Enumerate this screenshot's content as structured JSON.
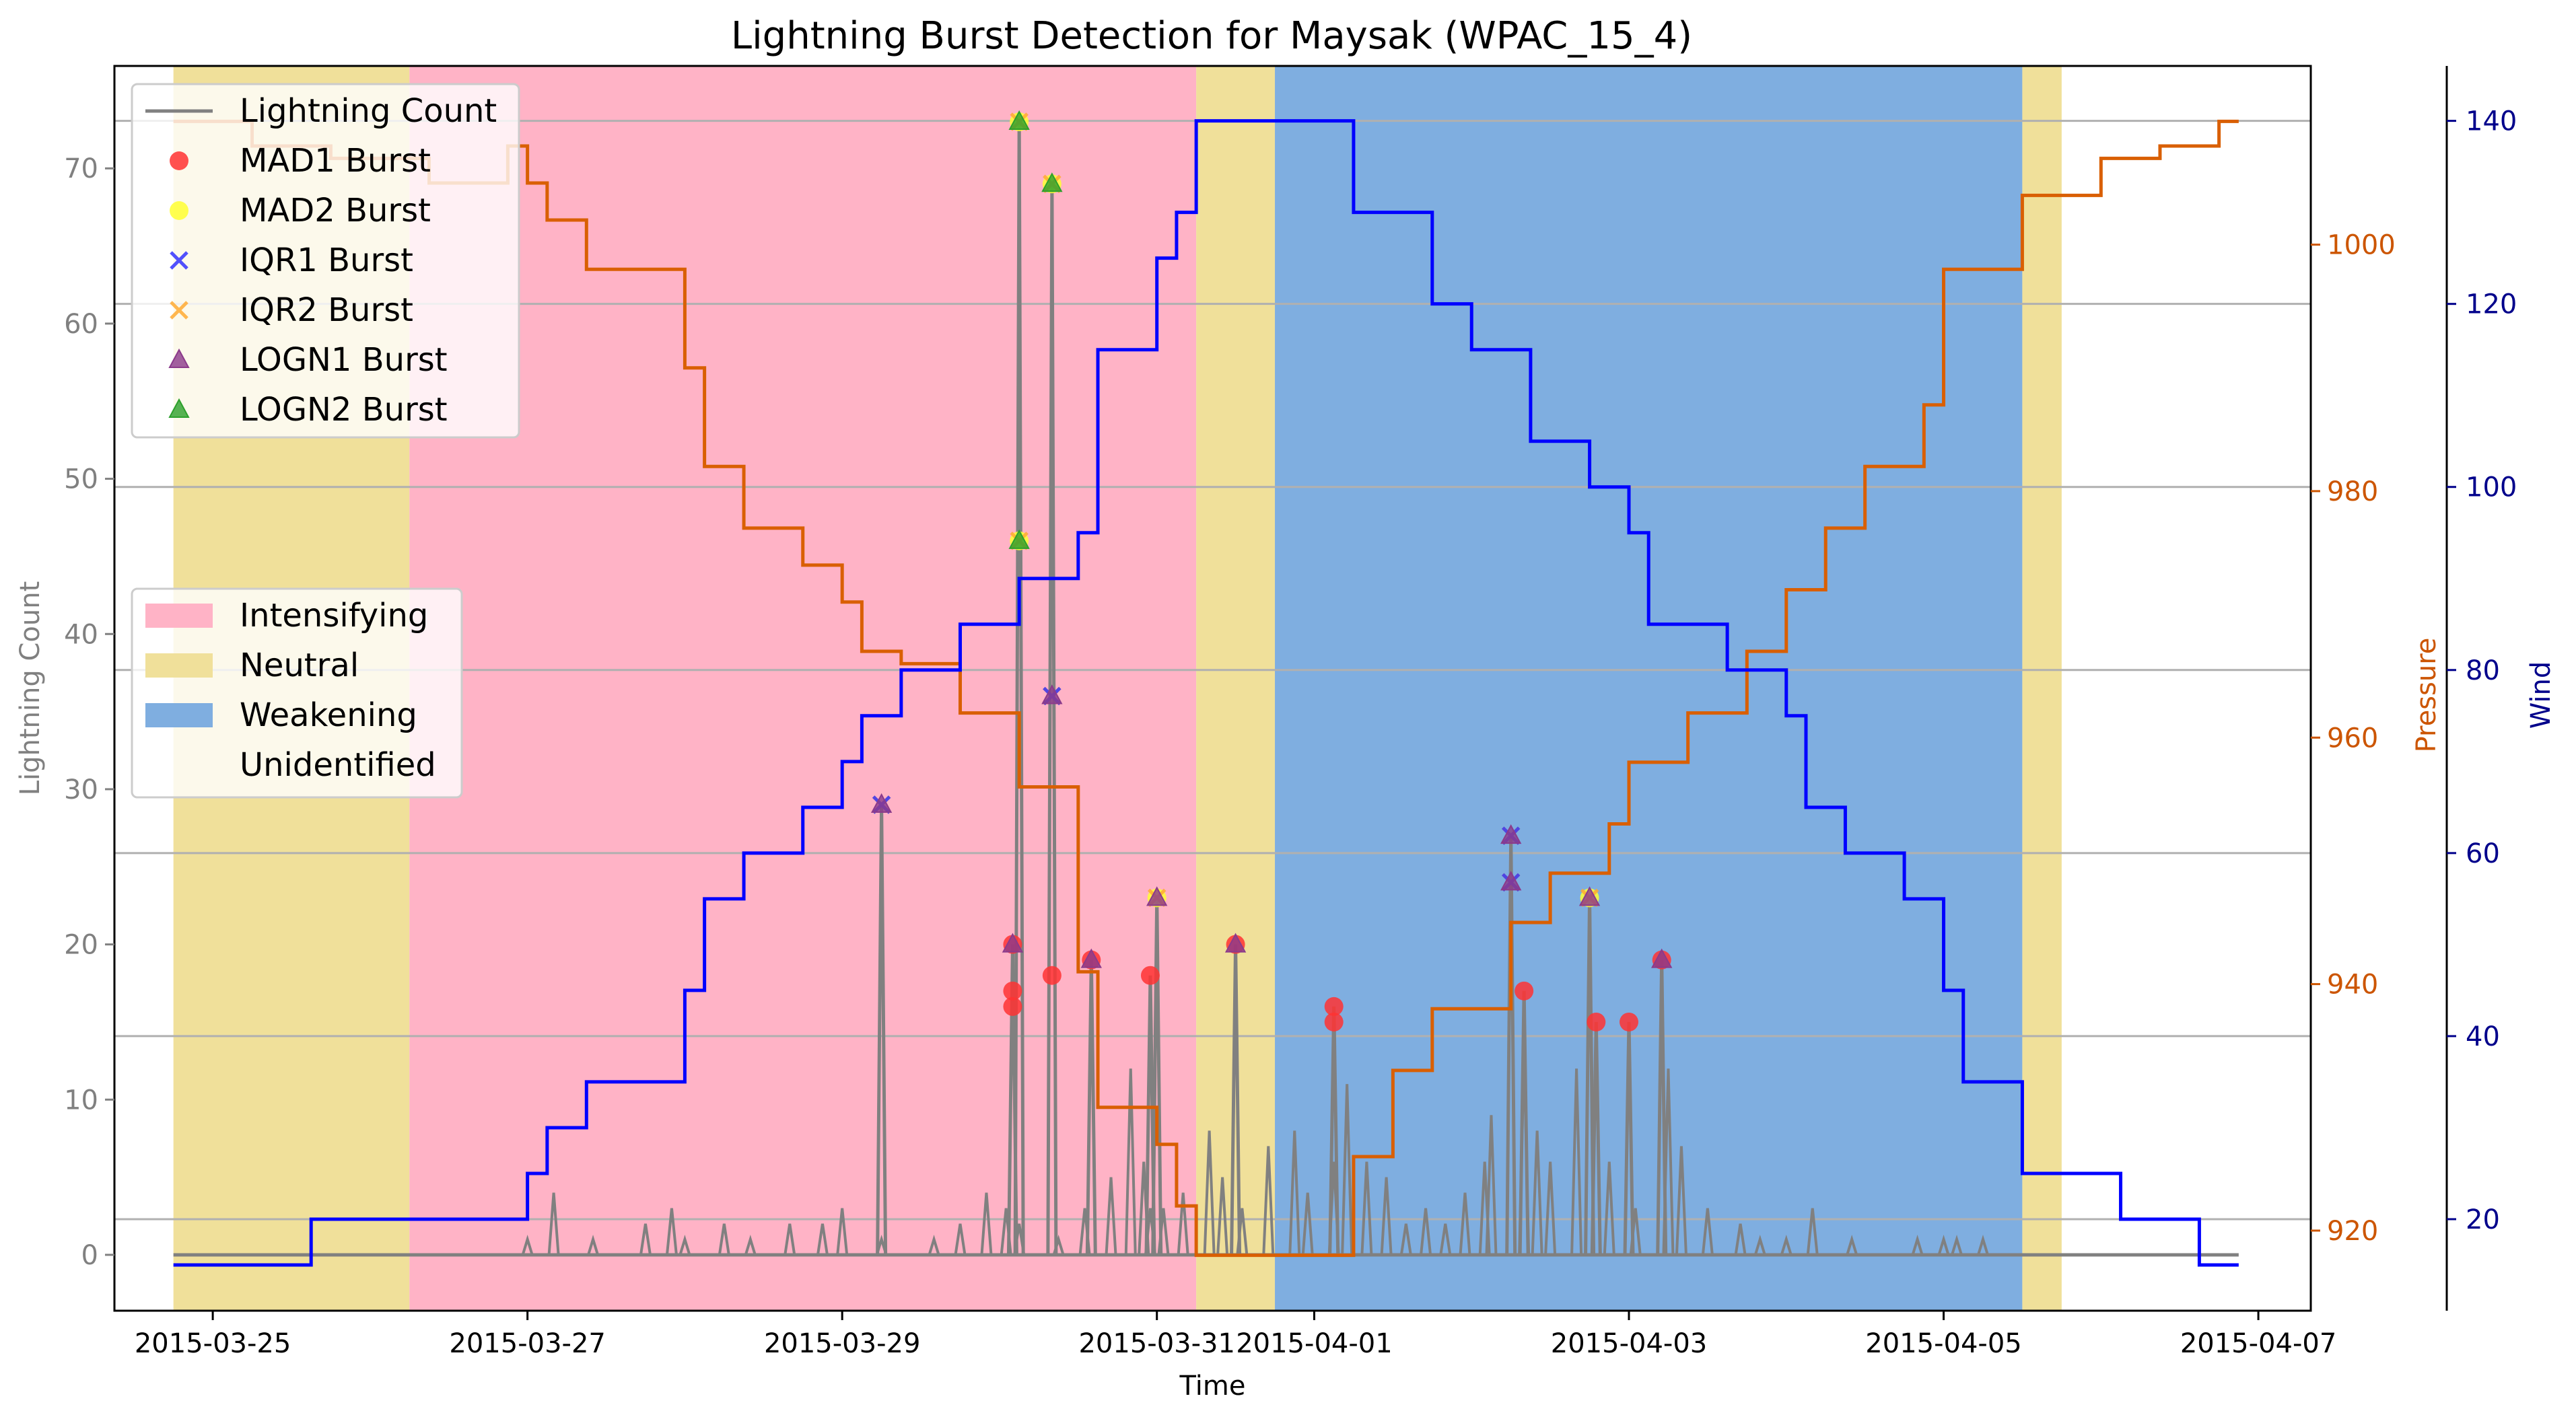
{
  "chart_data": {
    "type": "line",
    "title": "Lightning Burst Detection for Maysak (WPAC_15_4)",
    "xlabel": "Time",
    "ylabel_left": "Lightning Count",
    "ylabel_pressure": "Pressure",
    "ylabel_wind": "Wind",
    "x_range": [
      "2015-03-24T09:00",
      "2015-04-07T08:00"
    ],
    "x_ticks": [
      "2015-03-25",
      "2015-03-27",
      "2015-03-29",
      "2015-03-31",
      "2015-04-01",
      "2015-04-03",
      "2015-04-05",
      "2015-04-07"
    ],
    "x_tick_labels": [
      "2015-03-25",
      "2015-03-27",
      "2015-03-29",
      "2015-03-31",
      "2015-04-01",
      "2015-04-03",
      "2015-04-05",
      "2015-04-07"
    ],
    "y_left": {
      "range": [
        -3.6,
        76.6
      ],
      "ticks": [
        0,
        10,
        20,
        30,
        40,
        50,
        60,
        70
      ]
    },
    "y_pressure": {
      "range": [
        913.5,
        1014.5
      ],
      "ticks": [
        920,
        940,
        960,
        980,
        1000
      ]
    },
    "y_wind": {
      "range": [
        10.0,
        146.0
      ],
      "ticks": [
        20,
        40,
        60,
        80,
        100,
        120,
        140
      ]
    },
    "grid": "horizontal lines at wind ticks",
    "colors": {
      "intensifying": "#ffb3c6",
      "neutral": "#f0e09a",
      "weakening": "#7faee0",
      "lightning": "#808080",
      "pressure": "#d95f02",
      "wind": "#0000ff",
      "mad1": "#ff3333",
      "mad2": "#ffff33",
      "iqr1": "#3333ff",
      "iqr2": "#ffaa33",
      "logn1": "#8b3a8b",
      "logn2": "#2ca02c",
      "pressure_axis": "#cc5500",
      "wind_axis": "#00008b"
    },
    "phases": [
      {
        "label": "Neutral",
        "start": "2015-03-24T18:00",
        "end": "2015-03-26T06:00"
      },
      {
        "label": "Intensifying",
        "start": "2015-03-26T06:00",
        "end": "2015-03-31T06:00"
      },
      {
        "label": "Neutral",
        "start": "2015-03-31T06:00",
        "end": "2015-03-31T18:00"
      },
      {
        "label": "Weakening",
        "start": "2015-03-31T18:00",
        "end": "2015-04-05T12:00"
      },
      {
        "label": "Neutral",
        "start": "2015-04-05T12:00",
        "end": "2015-04-05T18:00"
      }
    ],
    "series": [
      {
        "name": "Pressure",
        "axis": "pressure",
        "step": true,
        "points": [
          [
            "2015-03-24T18:00",
            1010
          ],
          [
            "2015-03-25T06:00",
            1008
          ],
          [
            "2015-03-25T18:00",
            1007
          ],
          [
            "2015-03-26T09:00",
            1005
          ],
          [
            "2015-03-26T21:00",
            1008
          ],
          [
            "2015-03-27T00:00",
            1005
          ],
          [
            "2015-03-27T03:00",
            1002
          ],
          [
            "2015-03-27T09:00",
            998
          ],
          [
            "2015-03-28T00:00",
            990
          ],
          [
            "2015-03-28T03:00",
            982
          ],
          [
            "2015-03-28T09:00",
            977
          ],
          [
            "2015-03-28T18:00",
            974
          ],
          [
            "2015-03-29T00:00",
            971
          ],
          [
            "2015-03-29T03:00",
            967
          ],
          [
            "2015-03-29T09:00",
            966
          ],
          [
            "2015-03-29T18:00",
            962
          ],
          [
            "2015-03-30T03:00",
            956
          ],
          [
            "2015-03-30T12:00",
            941
          ],
          [
            "2015-03-30T15:00",
            930
          ],
          [
            "2015-03-31T00:00",
            927
          ],
          [
            "2015-03-31T03:00",
            922
          ],
          [
            "2015-03-31T06:00",
            918
          ],
          [
            "2015-04-01T06:00",
            926
          ],
          [
            "2015-04-01T12:00",
            933
          ],
          [
            "2015-04-01T18:00",
            938
          ],
          [
            "2015-04-02T06:00",
            945
          ],
          [
            "2015-04-02T12:00",
            949
          ],
          [
            "2015-04-02T21:00",
            953
          ],
          [
            "2015-04-03T00:00",
            958
          ],
          [
            "2015-04-03T09:00",
            962
          ],
          [
            "2015-04-03T18:00",
            967
          ],
          [
            "2015-04-04T00:00",
            972
          ],
          [
            "2015-04-04T06:00",
            977
          ],
          [
            "2015-04-04T12:00",
            982
          ],
          [
            "2015-04-04T21:00",
            987
          ],
          [
            "2015-04-05T00:00",
            998
          ],
          [
            "2015-04-05T12:00",
            1004
          ],
          [
            "2015-04-06T00:00",
            1007
          ],
          [
            "2015-04-06T09:00",
            1008
          ],
          [
            "2015-04-06T18:00",
            1010
          ],
          [
            "2015-04-06T21:00",
            1010
          ]
        ]
      },
      {
        "name": "Wind",
        "axis": "wind",
        "step": true,
        "points": [
          [
            "2015-03-24T18:00",
            15
          ],
          [
            "2015-03-25T15:00",
            20
          ],
          [
            "2015-03-27T00:00",
            25
          ],
          [
            "2015-03-27T03:00",
            30
          ],
          [
            "2015-03-27T09:00",
            35
          ],
          [
            "2015-03-28T00:00",
            45
          ],
          [
            "2015-03-28T03:00",
            55
          ],
          [
            "2015-03-28T09:00",
            60
          ],
          [
            "2015-03-28T18:00",
            65
          ],
          [
            "2015-03-29T00:00",
            70
          ],
          [
            "2015-03-29T03:00",
            75
          ],
          [
            "2015-03-29T09:00",
            80
          ],
          [
            "2015-03-29T18:00",
            85
          ],
          [
            "2015-03-30T03:00",
            90
          ],
          [
            "2015-03-30T12:00",
            95
          ],
          [
            "2015-03-30T15:00",
            115
          ],
          [
            "2015-03-31T00:00",
            125
          ],
          [
            "2015-03-31T03:00",
            130
          ],
          [
            "2015-03-31T06:00",
            140
          ],
          [
            "2015-04-01T06:00",
            130
          ],
          [
            "2015-04-01T18:00",
            120
          ],
          [
            "2015-04-02T00:00",
            115
          ],
          [
            "2015-04-02T09:00",
            105
          ],
          [
            "2015-04-02T18:00",
            100
          ],
          [
            "2015-04-03T00:00",
            95
          ],
          [
            "2015-04-03T03:00",
            85
          ],
          [
            "2015-04-03T15:00",
            80
          ],
          [
            "2015-04-04T00:00",
            75
          ],
          [
            "2015-04-04T03:00",
            65
          ],
          [
            "2015-04-04T09:00",
            60
          ],
          [
            "2015-04-04T18:00",
            55
          ],
          [
            "2015-04-05T00:00",
            45
          ],
          [
            "2015-04-05T03:00",
            35
          ],
          [
            "2015-04-05T12:00",
            25
          ],
          [
            "2015-04-06T03:00",
            20
          ],
          [
            "2015-04-06T15:00",
            15
          ],
          [
            "2015-04-06T21:00",
            15
          ]
        ]
      },
      {
        "name": "Lightning Count",
        "axis": "left",
        "peaks": [
          [
            "2015-03-27T00:00",
            1
          ],
          [
            "2015-03-27T04:00",
            4
          ],
          [
            "2015-03-27T10:00",
            1
          ],
          [
            "2015-03-27T18:00",
            2
          ],
          [
            "2015-03-27T22:00",
            3
          ],
          [
            "2015-03-28T00:00",
            1
          ],
          [
            "2015-03-28T06:00",
            2
          ],
          [
            "2015-03-28T10:00",
            1
          ],
          [
            "2015-03-28T16:00",
            2
          ],
          [
            "2015-03-28T21:00",
            2
          ],
          [
            "2015-03-29T00:00",
            3
          ],
          [
            "2015-03-29T06:00",
            1
          ],
          [
            "2015-03-29T14:00",
            1
          ],
          [
            "2015-03-29T18:00",
            2
          ],
          [
            "2015-03-29T22:00",
            4
          ],
          [
            "2015-03-30T01:00",
            3
          ],
          [
            "2015-03-30T03:00",
            2
          ],
          [
            "2015-03-30T09:00",
            1
          ],
          [
            "2015-03-30T13:00",
            3
          ],
          [
            "2015-03-30T17:00",
            5
          ],
          [
            "2015-03-30T20:00",
            12
          ],
          [
            "2015-03-30T22:00",
            6
          ],
          [
            "2015-03-30T23:00",
            3
          ],
          [
            "2015-03-31T01:00",
            3
          ],
          [
            "2015-03-31T04:00",
            4
          ],
          [
            "2015-03-31T08:00",
            8
          ],
          [
            "2015-03-31T10:00",
            5
          ],
          [
            "2015-03-31T13:00",
            3
          ],
          [
            "2015-03-31T17:00",
            7
          ],
          [
            "2015-03-31T21:00",
            8
          ],
          [
            "2015-03-31T23:00",
            4
          ],
          [
            "2015-04-01T03:00",
            6
          ],
          [
            "2015-04-01T05:00",
            11
          ],
          [
            "2015-04-01T08:00",
            6
          ],
          [
            "2015-04-01T11:00",
            5
          ],
          [
            "2015-04-01T14:00",
            2
          ],
          [
            "2015-04-01T17:00",
            3
          ],
          [
            "2015-04-01T20:00",
            2
          ],
          [
            "2015-04-01T23:00",
            4
          ],
          [
            "2015-04-02T02:00",
            6
          ],
          [
            "2015-04-02T03:00",
            9
          ],
          [
            "2015-04-02T08:00",
            13
          ],
          [
            "2015-04-02T10:00",
            8
          ],
          [
            "2015-04-02T12:00",
            6
          ],
          [
            "2015-04-02T16:00",
            12
          ],
          [
            "2015-04-02T21:00",
            6
          ],
          [
            "2015-04-03T01:00",
            3
          ],
          [
            "2015-04-03T06:00",
            12
          ],
          [
            "2015-04-03T08:00",
            7
          ],
          [
            "2015-04-03T12:00",
            3
          ],
          [
            "2015-04-03T17:00",
            2
          ],
          [
            "2015-04-03T20:00",
            1
          ],
          [
            "2015-04-04T00:00",
            1
          ],
          [
            "2015-04-04T04:00",
            3
          ],
          [
            "2015-04-04T10:00",
            1
          ],
          [
            "2015-04-04T20:00",
            1
          ],
          [
            "2015-04-05T00:00",
            1
          ],
          [
            "2015-04-05T02:00",
            1
          ],
          [
            "2015-04-05T06:00",
            1
          ]
        ]
      }
    ],
    "bursts": [
      {
        "time": "2015-03-29T06:00",
        "count": 29,
        "markers": [
          "LOGN1",
          "IQR1",
          "IQR2"
        ]
      },
      {
        "time": "2015-03-30T02:00",
        "count": 17,
        "markers": [
          "MAD1"
        ]
      },
      {
        "time": "2015-03-30T02:00",
        "count": 16,
        "markers": [
          "MAD1"
        ]
      },
      {
        "time": "2015-03-30T02:00",
        "count": 20,
        "markers": [
          "MAD1",
          "LOGN1"
        ]
      },
      {
        "time": "2015-03-30T03:00",
        "count": 73,
        "markers": [
          "MAD2",
          "IQR2",
          "LOGN2"
        ]
      },
      {
        "time": "2015-03-30T03:00",
        "count": 46,
        "markers": [
          "MAD2",
          "IQR2",
          "LOGN2"
        ]
      },
      {
        "time": "2015-03-30T08:00",
        "count": 69,
        "markers": [
          "MAD2",
          "IQR2",
          "LOGN2"
        ]
      },
      {
        "time": "2015-03-30T08:00",
        "count": 36,
        "markers": [
          "LOGN1",
          "IQR1",
          "IQR2"
        ]
      },
      {
        "time": "2015-03-30T08:00",
        "count": 18,
        "markers": [
          "MAD1"
        ]
      },
      {
        "time": "2015-03-30T14:00",
        "count": 19,
        "markers": [
          "MAD1",
          "LOGN1"
        ]
      },
      {
        "time": "2015-03-30T23:00",
        "count": 18,
        "markers": [
          "MAD1"
        ]
      },
      {
        "time": "2015-03-31T00:00",
        "count": 23,
        "markers": [
          "MAD2",
          "IQR2",
          "LOGN1"
        ]
      },
      {
        "time": "2015-03-31T12:00",
        "count": 20,
        "markers": [
          "MAD1",
          "LOGN1"
        ]
      },
      {
        "time": "2015-04-01T03:00",
        "count": 16,
        "markers": [
          "MAD1"
        ]
      },
      {
        "time": "2015-04-01T03:00",
        "count": 15,
        "markers": [
          "MAD1"
        ]
      },
      {
        "time": "2015-04-02T06:00",
        "count": 27,
        "markers": [
          "LOGN1",
          "IQR1",
          "IQR2"
        ]
      },
      {
        "time": "2015-04-02T06:00",
        "count": 24,
        "markers": [
          "LOGN1",
          "IQR1",
          "IQR2"
        ]
      },
      {
        "time": "2015-04-02T08:00",
        "count": 17,
        "markers": [
          "MAD1"
        ]
      },
      {
        "time": "2015-04-02T18:00",
        "count": 23,
        "markers": [
          "MAD2",
          "IQR2",
          "LOGN1"
        ]
      },
      {
        "time": "2015-04-02T19:00",
        "count": 15,
        "markers": [
          "MAD1"
        ]
      },
      {
        "time": "2015-04-03T00:00",
        "count": 15,
        "markers": [
          "MAD1"
        ]
      },
      {
        "time": "2015-04-03T05:00",
        "count": 19,
        "markers": [
          "MAD1",
          "LOGN1"
        ]
      }
    ],
    "legend_markers": [
      {
        "key": "line",
        "label": "Lightning Count"
      },
      {
        "key": "MAD1",
        "label": "MAD1 Burst"
      },
      {
        "key": "MAD2",
        "label": "MAD2 Burst"
      },
      {
        "key": "IQR1",
        "label": "IQR1 Burst"
      },
      {
        "key": "IQR2",
        "label": "IQR2 Burst"
      },
      {
        "key": "LOGN1",
        "label": "LOGN1 Burst"
      },
      {
        "key": "LOGN2",
        "label": "LOGN2 Burst"
      }
    ],
    "legend_phases": [
      {
        "key": "intensifying",
        "label": "Intensifying"
      },
      {
        "key": "neutral",
        "label": "Neutral"
      },
      {
        "key": "weakening",
        "label": "Weakening"
      },
      {
        "key": "unidentified",
        "label": "Unidentified"
      }
    ],
    "legend_placement": [
      "upper-left",
      "center-left"
    ]
  }
}
